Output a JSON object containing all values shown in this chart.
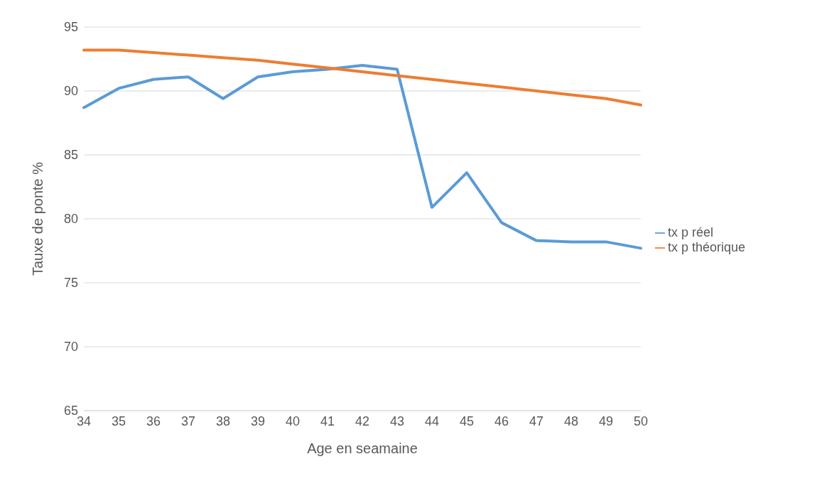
{
  "chart_data": {
    "type": "line",
    "xlabel": "Age en seamaine",
    "ylabel": "Tauxe de ponte %",
    "categories": [
      "34",
      "35",
      "36",
      "37",
      "38",
      "39",
      "40",
      "41",
      "42",
      "43",
      "44",
      "45",
      "46",
      "47",
      "48",
      "49",
      "50"
    ],
    "series": [
      {
        "name": "tx p réel",
        "color": "#5b9bd5",
        "values": [
          88.7,
          90.2,
          90.9,
          91.1,
          89.4,
          91.1,
          91.5,
          91.7,
          92.0,
          91.7,
          80.9,
          83.6,
          79.7,
          78.3,
          78.2,
          78.2,
          77.7
        ]
      },
      {
        "name": "tx p théorique",
        "color": "#ed7d31",
        "values": [
          93.2,
          93.2,
          93.0,
          92.8,
          92.6,
          92.4,
          92.1,
          91.8,
          91.5,
          91.2,
          90.9,
          90.6,
          90.3,
          90.0,
          89.7,
          89.4,
          88.9
        ]
      }
    ],
    "ylim": [
      65,
      95
    ],
    "yticks": [
      65,
      70,
      75,
      80,
      85,
      90,
      95
    ],
    "grid": "y",
    "legend": "right",
    "marker": "none",
    "line_style": "solid"
  }
}
